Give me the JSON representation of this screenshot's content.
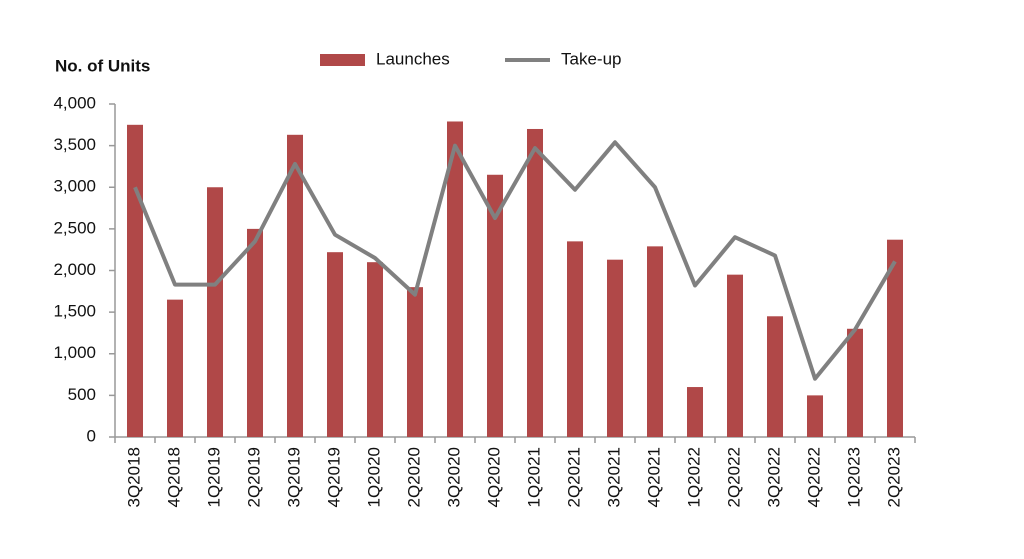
{
  "chart_data": {
    "type": "bar-line",
    "y_axis_label": "No. of Units",
    "categories": [
      "3Q2018",
      "4Q2018",
      "1Q2019",
      "2Q2019",
      "3Q2019",
      "4Q2019",
      "1Q2020",
      "2Q2020",
      "3Q2020",
      "4Q2020",
      "1Q2021",
      "2Q2021",
      "3Q2021",
      "4Q2021",
      "1Q2022",
      "2Q2022",
      "3Q2022",
      "4Q2022",
      "1Q2023",
      "2Q2023"
    ],
    "series": [
      {
        "name": "Launches",
        "type": "bar",
        "color": "#b04848",
        "values": [
          3750,
          1650,
          3000,
          2500,
          3630,
          2220,
          2100,
          1800,
          3790,
          3150,
          3700,
          2350,
          2130,
          2290,
          600,
          1950,
          1450,
          500,
          1300,
          2370
        ]
      },
      {
        "name": "Take-up",
        "type": "line",
        "color": "#808080",
        "values": [
          3000,
          1830,
          1830,
          2350,
          3280,
          2430,
          2150,
          1710,
          3500,
          2630,
          3470,
          2970,
          3540,
          3000,
          1820,
          2400,
          2180,
          700,
          1290,
          2110
        ]
      }
    ],
    "ylim": [
      0,
      4000
    ],
    "yticks": [
      0,
      500,
      {
        "value": 1000,
        "label": "1,000"
      },
      {
        "value": 1500,
        "label": "1,500"
      },
      {
        "value": 2000,
        "label": "2,000"
      },
      {
        "value": 2500,
        "label": "2,500"
      },
      {
        "value": 3000,
        "label": "3,000"
      },
      {
        "value": 3500,
        "label": "3,500"
      },
      {
        "value": 4000,
        "label": "4,000"
      }
    ],
    "grid": false,
    "legend": "top"
  }
}
